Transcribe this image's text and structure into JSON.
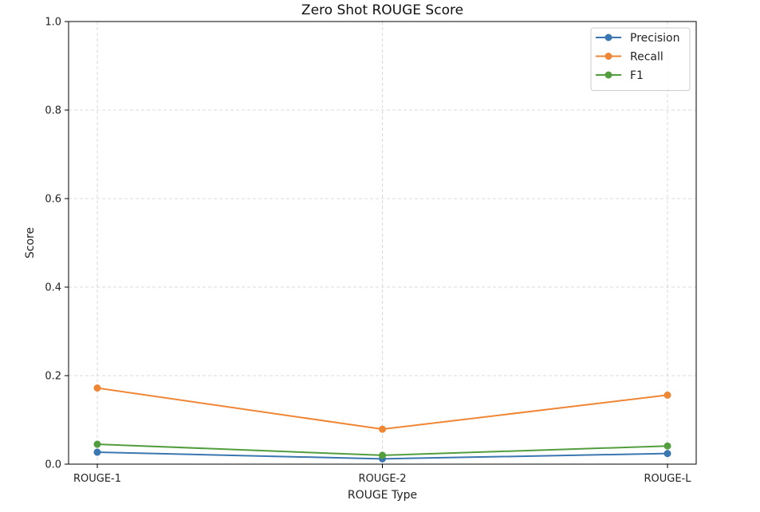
{
  "chart_data": {
    "type": "line",
    "title": "Zero Shot ROUGE Score",
    "xlabel": "ROUGE Type",
    "ylabel": "Score",
    "categories": [
      "ROUGE-1",
      "ROUGE-2",
      "ROUGE-L"
    ],
    "ylim": [
      0,
      1.0
    ],
    "yticks": [
      "0.0",
      "0.2",
      "0.4",
      "0.6",
      "0.8",
      "1.0"
    ],
    "grid": true,
    "legend_position": "top-right",
    "series": [
      {
        "name": "Precision",
        "color": "#3a76af",
        "values": [
          0.027,
          0.012,
          0.024
        ]
      },
      {
        "name": "Recall",
        "color": "#ef8636",
        "values": [
          0.172,
          0.079,
          0.156
        ]
      },
      {
        "name": "F1",
        "color": "#529e3e",
        "values": [
          0.045,
          0.02,
          0.041
        ]
      }
    ]
  }
}
